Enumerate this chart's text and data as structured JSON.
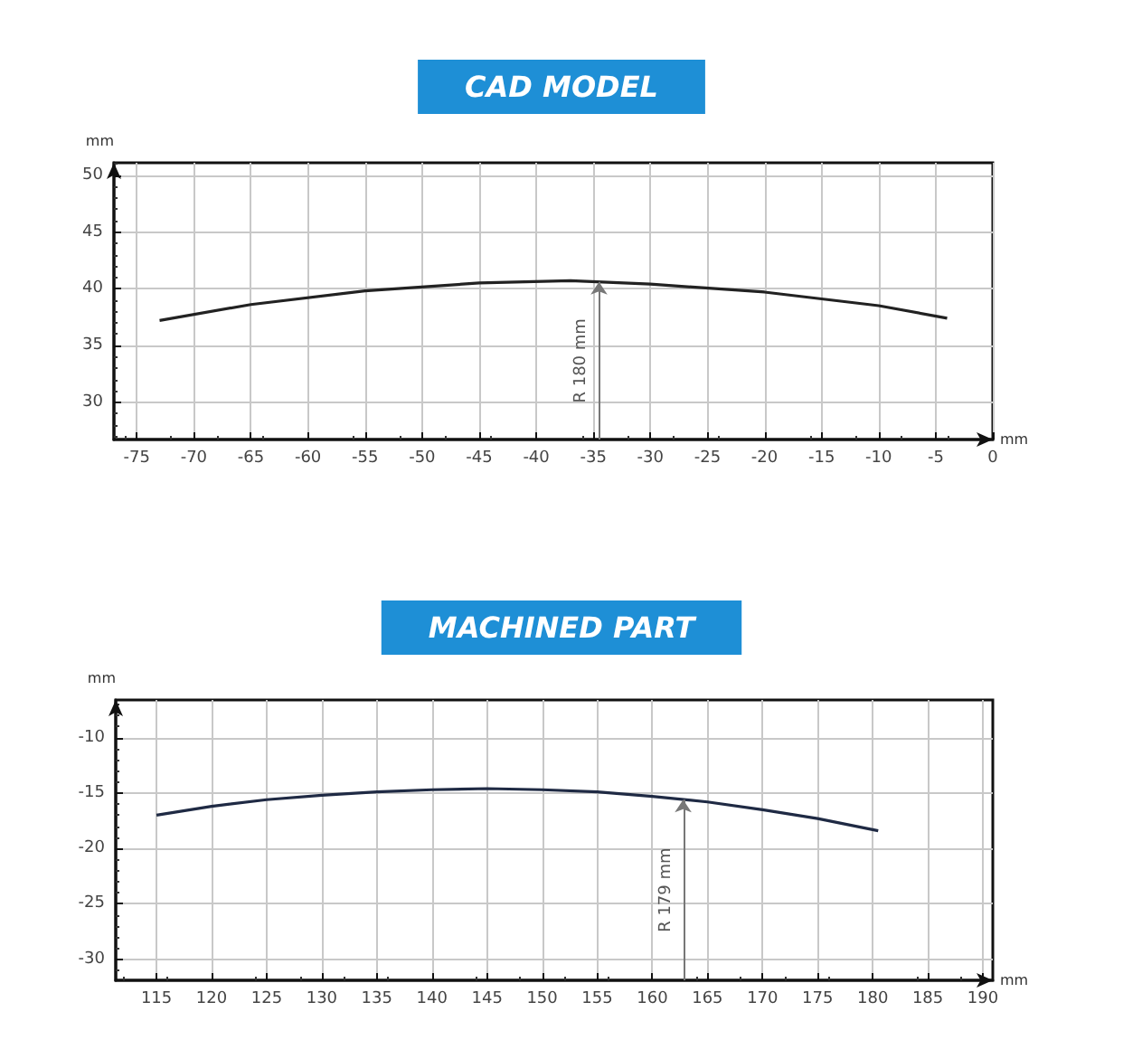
{
  "chart_data": [
    {
      "type": "line",
      "title": "CAD MODEL",
      "xlabel": "mm",
      "ylabel": "mm",
      "x": [
        -73,
        -65,
        -55,
        -45,
        -37,
        -30,
        -20,
        -10,
        -4
      ],
      "series": [
        {
          "color": "#222222",
          "values": [
            37.2,
            38.6,
            39.8,
            40.5,
            40.7,
            40.4,
            39.7,
            38.5,
            37.4
          ]
        }
      ],
      "xlim": [
        -77,
        0
      ],
      "xticks": [
        -75,
        -70,
        -65,
        -60,
        -55,
        -50,
        -45,
        -40,
        -35,
        -30,
        -25,
        -20,
        -15,
        -10,
        -5,
        0
      ],
      "ylim": [
        26.7,
        51.1
      ],
      "yticks": [
        30,
        35,
        40,
        45,
        50
      ],
      "grid": true,
      "marker": "none",
      "line_style": "solid",
      "annotations": [
        {
          "text": "R 180 mm",
          "x": -34.5,
          "y": 40.6
        }
      ]
    },
    {
      "type": "line",
      "title": "MACHINED PART",
      "xlabel": "mm",
      "ylabel": "mm",
      "x": [
        115,
        120,
        125,
        130,
        135,
        140,
        145,
        150,
        155,
        160,
        165,
        170,
        175,
        180.5
      ],
      "series": [
        {
          "color": "#1f2a44",
          "values": [
            -17.0,
            -16.2,
            -15.6,
            -15.2,
            -14.9,
            -14.7,
            -14.6,
            -14.7,
            -14.9,
            -15.3,
            -15.8,
            -16.5,
            -17.3,
            -18.4
          ]
        }
      ],
      "xlim": [
        111.3,
        190.9
      ],
      "xticks": [
        115,
        120,
        125,
        130,
        135,
        140,
        145,
        150,
        155,
        160,
        165,
        170,
        175,
        180,
        185,
        190
      ],
      "ylim": [
        -31.9,
        -6.6
      ],
      "yticks": [
        -30,
        -25,
        -20,
        -15,
        -10
      ],
      "grid": true,
      "marker": "none",
      "line_style": "solid",
      "annotations": [
        {
          "text": "R 179 mm",
          "x": 162.8,
          "y": -15.6
        }
      ]
    }
  ]
}
